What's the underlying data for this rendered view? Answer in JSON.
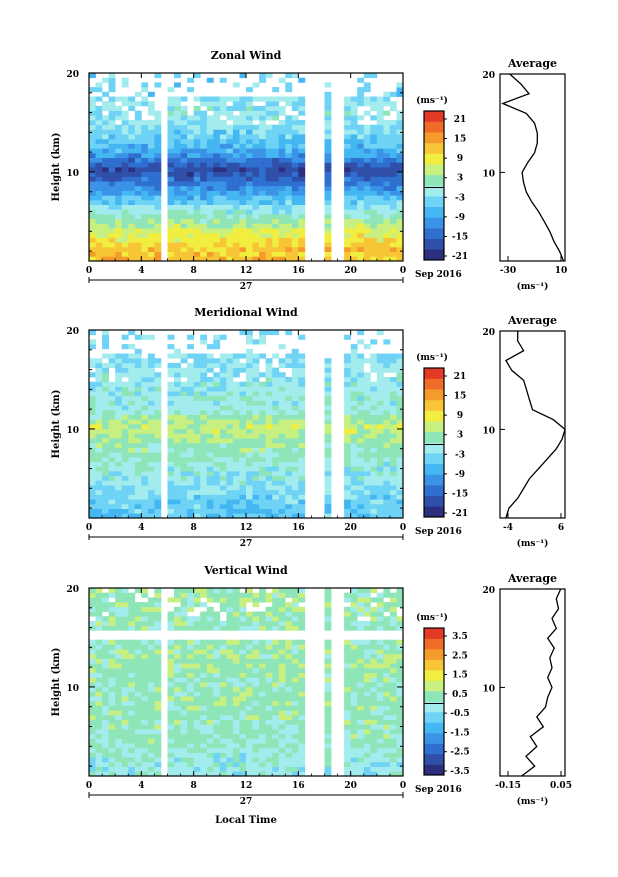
{
  "colors": [
    "#2b2f7e",
    "#2f4fa8",
    "#2f6fd0",
    "#3b93e8",
    "#44b6f2",
    "#6fd3f6",
    "#a2ecee",
    "#8ee6b8",
    "#c8f080",
    "#f1ee40",
    "#f7c535",
    "#f59b2c",
    "#f06b27",
    "#e23a26"
  ],
  "x_axis": {
    "ticks": [
      "0",
      "4",
      "8",
      "12",
      "16",
      "20",
      "0"
    ],
    "date_day": "27",
    "date_month": "Sep 2016",
    "label": "Local Time"
  },
  "y_axis": {
    "label": "Height (km)",
    "ticks": [
      "20",
      "10"
    ]
  },
  "avg_xlabel": "(ms⁻¹)",
  "colorbar_unit": "(ms⁻¹)",
  "panels": [
    {
      "title": "Zonal Wind",
      "cbar_ticks": [
        "21",
        "15",
        "9",
        "3",
        "-3",
        "-9",
        "-15",
        "-21"
      ],
      "avg_title": "Average",
      "avg_xticks": [
        "-30",
        "10"
      ],
      "avg_yticks": [
        "20",
        "10"
      ]
    },
    {
      "title": "Meridional Wind",
      "cbar_ticks": [
        "21",
        "15",
        "9",
        "3",
        "-3",
        "-9",
        "-15",
        "-21"
      ],
      "avg_title": "Average",
      "avg_xticks": [
        "-4",
        "6"
      ],
      "avg_yticks": [
        "20",
        "10"
      ]
    },
    {
      "title": "Vertical Wind",
      "cbar_ticks": [
        "3.5",
        "2.5",
        "1.5",
        "0.5",
        "-0.5",
        "-1.5",
        "-2.5",
        "-3.5"
      ],
      "avg_title": "Average",
      "avg_xticks": [
        "-0.15",
        "0.05"
      ],
      "avg_yticks": [
        "20",
        "10"
      ]
    }
  ],
  "chart_data": [
    {
      "type": "heatmap",
      "title": "Zonal Wind",
      "xlabel": "Local Time",
      "ylabel": "Height (km)",
      "xlim": [
        0,
        24
      ],
      "ylim": [
        1,
        20
      ],
      "colorbar": {
        "unit": "(ms⁻¹)",
        "range": [
          -24,
          24
        ]
      },
      "profile_by_height": [
        {
          "h": 2,
          "v": 12
        },
        {
          "h": 4,
          "v": 6
        },
        {
          "h": 6,
          "v": -2
        },
        {
          "h": 8,
          "v": -12
        },
        {
          "h": 10,
          "v": -20
        },
        {
          "h": 12,
          "v": -9
        },
        {
          "h": 14,
          "v": -4
        },
        {
          "h": 16,
          "v": -2
        },
        {
          "h": 18,
          "v": -5
        }
      ],
      "gaps_hours": [
        [
          5.6,
          5.9
        ],
        [
          16.8,
          18.0
        ],
        [
          18.6,
          19.2
        ]
      ],
      "average_profile": {
        "title": "Average",
        "xlabel": "(ms⁻¹)",
        "xlim": [
          -35,
          12
        ],
        "ylim": [
          1,
          20
        ],
        "points": [
          {
            "h": 1,
            "v": 11
          },
          {
            "h": 2,
            "v": 8
          },
          {
            "h": 3,
            "v": 4
          },
          {
            "h": 4,
            "v": 1
          },
          {
            "h": 5,
            "v": -3
          },
          {
            "h": 6,
            "v": -7
          },
          {
            "h": 7,
            "v": -12
          },
          {
            "h": 8,
            "v": -16
          },
          {
            "h": 9,
            "v": -18
          },
          {
            "h": 10,
            "v": -19
          },
          {
            "h": 11,
            "v": -15
          },
          {
            "h": 12,
            "v": -10
          },
          {
            "h": 13,
            "v": -8
          },
          {
            "h": 14,
            "v": -8
          },
          {
            "h": 15,
            "v": -10
          },
          {
            "h": 16,
            "v": -16
          },
          {
            "h": 17,
            "v": -33
          },
          {
            "h": 18,
            "v": -14
          },
          {
            "h": 19,
            "v": -20
          },
          {
            "h": 20,
            "v": -28
          }
        ]
      }
    },
    {
      "type": "heatmap",
      "title": "Meridional Wind",
      "xlabel": "Local Time",
      "ylabel": "Height (km)",
      "xlim": [
        0,
        24
      ],
      "ylim": [
        1,
        20
      ],
      "colorbar": {
        "unit": "(ms⁻¹)",
        "range": [
          -24,
          24
        ]
      },
      "profile_by_height": [
        {
          "h": 2,
          "v": -6
        },
        {
          "h": 4,
          "v": -3
        },
        {
          "h": 6,
          "v": -1
        },
        {
          "h": 8,
          "v": 2
        },
        {
          "h": 10,
          "v": 5
        },
        {
          "h": 12,
          "v": -1
        },
        {
          "h": 14,
          "v": -2
        },
        {
          "h": 16,
          "v": -3
        },
        {
          "h": 18,
          "v": -4
        }
      ],
      "gaps_hours": [
        [
          5.6,
          5.9
        ],
        [
          16.8,
          18.0
        ],
        [
          18.6,
          19.2
        ]
      ],
      "average_profile": {
        "title": "Average",
        "xlabel": "(ms⁻¹)",
        "xlim": [
          -5,
          6
        ],
        "ylim": [
          1,
          20
        ],
        "points": [
          {
            "h": 1,
            "v": -4
          },
          {
            "h": 2,
            "v": -3.5
          },
          {
            "h": 3,
            "v": -2
          },
          {
            "h": 4,
            "v": -1
          },
          {
            "h": 5,
            "v": 0
          },
          {
            "h": 6,
            "v": 1.5
          },
          {
            "h": 7,
            "v": 3
          },
          {
            "h": 8,
            "v": 4.5
          },
          {
            "h": 9,
            "v": 5.5
          },
          {
            "h": 10,
            "v": 6
          },
          {
            "h": 11,
            "v": 4
          },
          {
            "h": 12,
            "v": 0.5
          },
          {
            "h": 13,
            "v": 0
          },
          {
            "h": 14,
            "v": -0.5
          },
          {
            "h": 15,
            "v": -1
          },
          {
            "h": 16,
            "v": -3
          },
          {
            "h": 17,
            "v": -4
          },
          {
            "h": 18,
            "v": -1
          },
          {
            "h": 19,
            "v": -2
          },
          {
            "h": 20,
            "v": -2
          }
        ]
      }
    },
    {
      "type": "heatmap",
      "title": "Vertical Wind",
      "xlabel": "Local Time",
      "ylabel": "Height (km)",
      "xlim": [
        0,
        24
      ],
      "ylim": [
        1,
        20
      ],
      "colorbar": {
        "unit": "(ms⁻¹)",
        "range": [
          -4,
          4
        ]
      },
      "profile_by_height": [
        {
          "h": 2,
          "v": -0.3
        },
        {
          "h": 4,
          "v": 0.1
        },
        {
          "h": 6,
          "v": 0.2
        },
        {
          "h": 8,
          "v": 0.3
        },
        {
          "h": 10,
          "v": 0.2
        },
        {
          "h": 12,
          "v": 0.4
        },
        {
          "h": 14,
          "v": 0.3
        },
        {
          "h": 16,
          "v": 0.2
        },
        {
          "h": 18,
          "v": 0.3
        }
      ],
      "gaps_hours": [
        [
          5.6,
          5.9
        ],
        [
          16.8,
          18.0
        ],
        [
          18.6,
          19.2
        ]
      ],
      "average_profile": {
        "title": "Average",
        "xlabel": "(ms⁻¹)",
        "xlim": [
          -0.22,
          0.08
        ],
        "ylim": [
          1,
          20
        ],
        "points": [
          {
            "h": 1,
            "v": -0.12
          },
          {
            "h": 2,
            "v": -0.06
          },
          {
            "h": 3,
            "v": -0.1
          },
          {
            "h": 4,
            "v": -0.05
          },
          {
            "h": 5,
            "v": -0.08
          },
          {
            "h": 6,
            "v": -0.02
          },
          {
            "h": 7,
            "v": -0.05
          },
          {
            "h": 8,
            "v": -0.01
          },
          {
            "h": 9,
            "v": 0.0
          },
          {
            "h": 10,
            "v": 0.02
          },
          {
            "h": 11,
            "v": 0.0
          },
          {
            "h": 12,
            "v": 0.02
          },
          {
            "h": 13,
            "v": 0.01
          },
          {
            "h": 14,
            "v": 0.03
          },
          {
            "h": 15,
            "v": 0.0
          },
          {
            "h": 16,
            "v": 0.04
          },
          {
            "h": 17,
            "v": 0.02
          },
          {
            "h": 18,
            "v": 0.05
          },
          {
            "h": 19,
            "v": 0.04
          },
          {
            "h": 20,
            "v": 0.06
          }
        ]
      }
    }
  ]
}
